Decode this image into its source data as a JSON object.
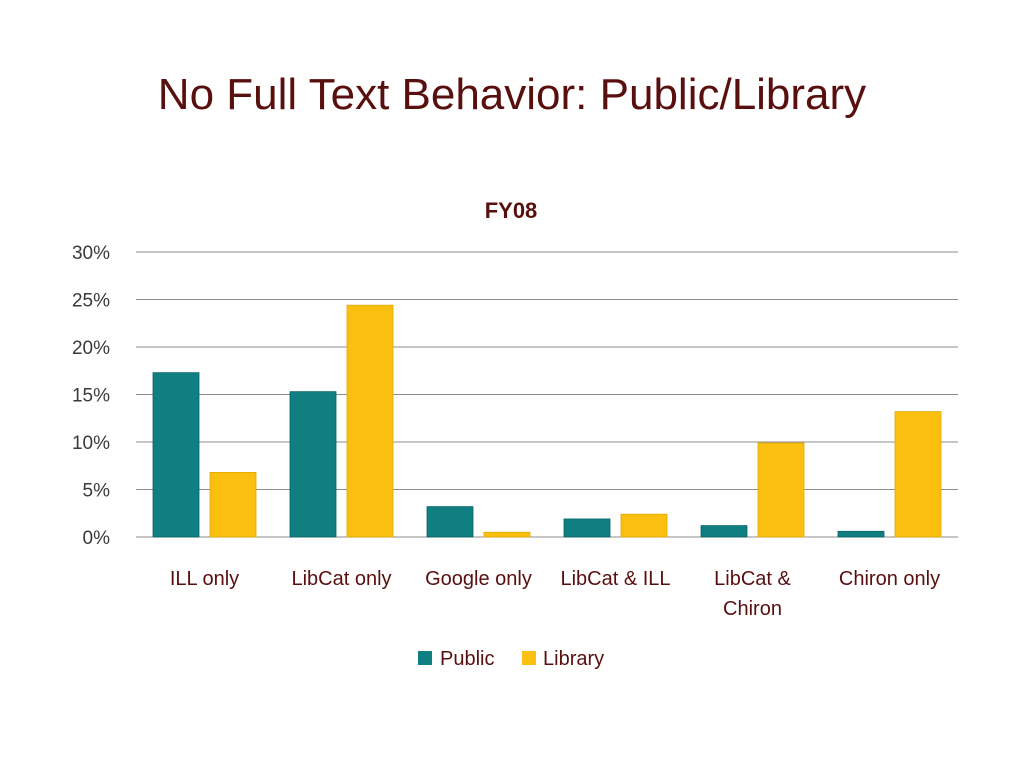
{
  "slide": {
    "title": "No Full Text Behavior: Public/Library"
  },
  "chart_data": {
    "type": "bar",
    "title": "FY08",
    "categories": [
      "ILL only",
      "LibCat only",
      "Google only",
      "LibCat & ILL",
      "LibCat & Chiron",
      "Chiron only"
    ],
    "category_lines": [
      [
        "ILL only"
      ],
      [
        "LibCat only"
      ],
      [
        "Google only"
      ],
      [
        "LibCat & ILL"
      ],
      [
        "LibCat &",
        "Chiron"
      ],
      [
        "Chiron only"
      ]
    ],
    "series": [
      {
        "name": "Public",
        "color": "#0f7f82",
        "values": [
          17.3,
          15.3,
          3.2,
          1.9,
          1.2,
          0.6
        ]
      },
      {
        "name": "Library",
        "color": "#fbbf10",
        "values": [
          6.8,
          24.4,
          0.5,
          2.4,
          9.9,
          13.2
        ]
      }
    ],
    "ylim": [
      0,
      30
    ],
    "yticks": [
      0,
      5,
      10,
      15,
      20,
      25,
      30
    ],
    "ytick_labels": [
      "0%",
      "5%",
      "10%",
      "15%",
      "20%",
      "25%",
      "30%"
    ],
    "grid": true,
    "legend_position": "bottom",
    "xlabel": "",
    "ylabel": ""
  }
}
